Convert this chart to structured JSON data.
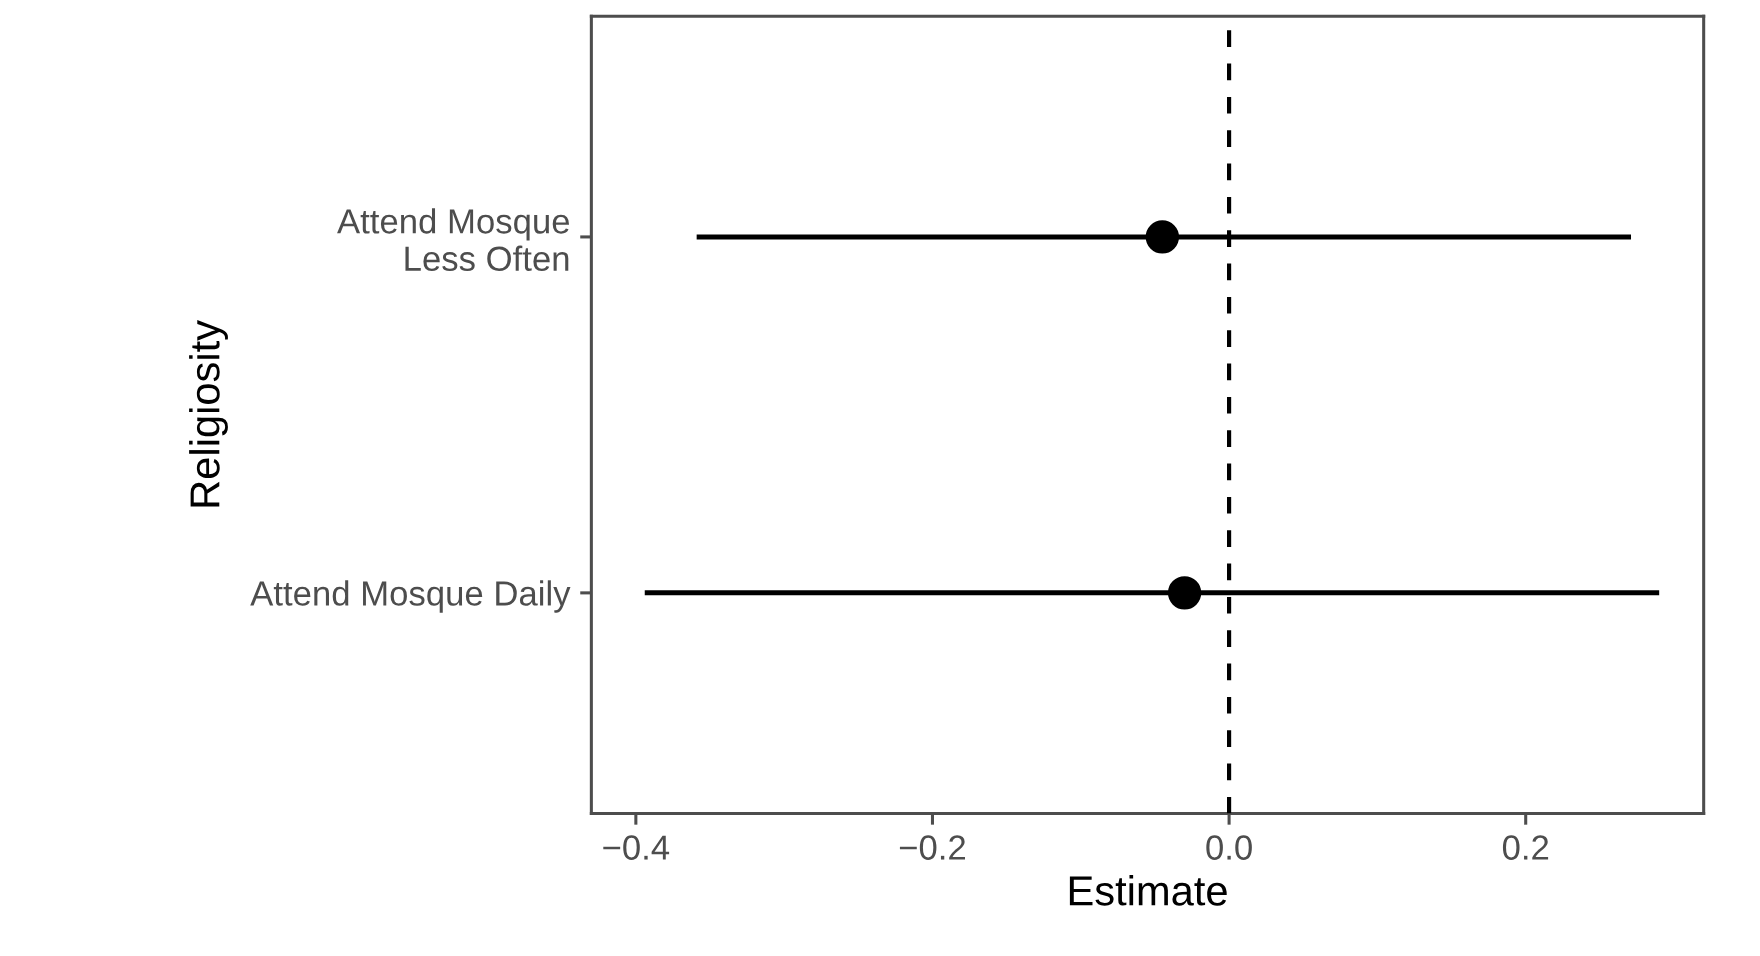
{
  "chart_data": {
    "type": "scatter",
    "orientation": "horizontal",
    "xlabel": "Estimate",
    "ylabel": "Religiosity",
    "categories": [
      "Attend Mosque\nLess Often",
      "Attend Mosque Daily"
    ],
    "values": [
      -0.045,
      -0.03
    ],
    "errors": [
      [
        -0.359,
        0.271
      ],
      [
        -0.394,
        0.29
      ]
    ],
    "color": "#000000",
    "marker": "circle",
    "xlim": [
      -0.43,
      0.32
    ],
    "xticks": [
      {
        "value": -0.4,
        "label": "−0.4"
      },
      {
        "value": -0.2,
        "label": "−0.2"
      },
      {
        "value": 0,
        "label": "0.0"
      },
      0.2
    ],
    "ref_lines": [
      {
        "axis": "x",
        "value": 0,
        "color": "#000000",
        "line_style": "dashed"
      }
    ]
  }
}
